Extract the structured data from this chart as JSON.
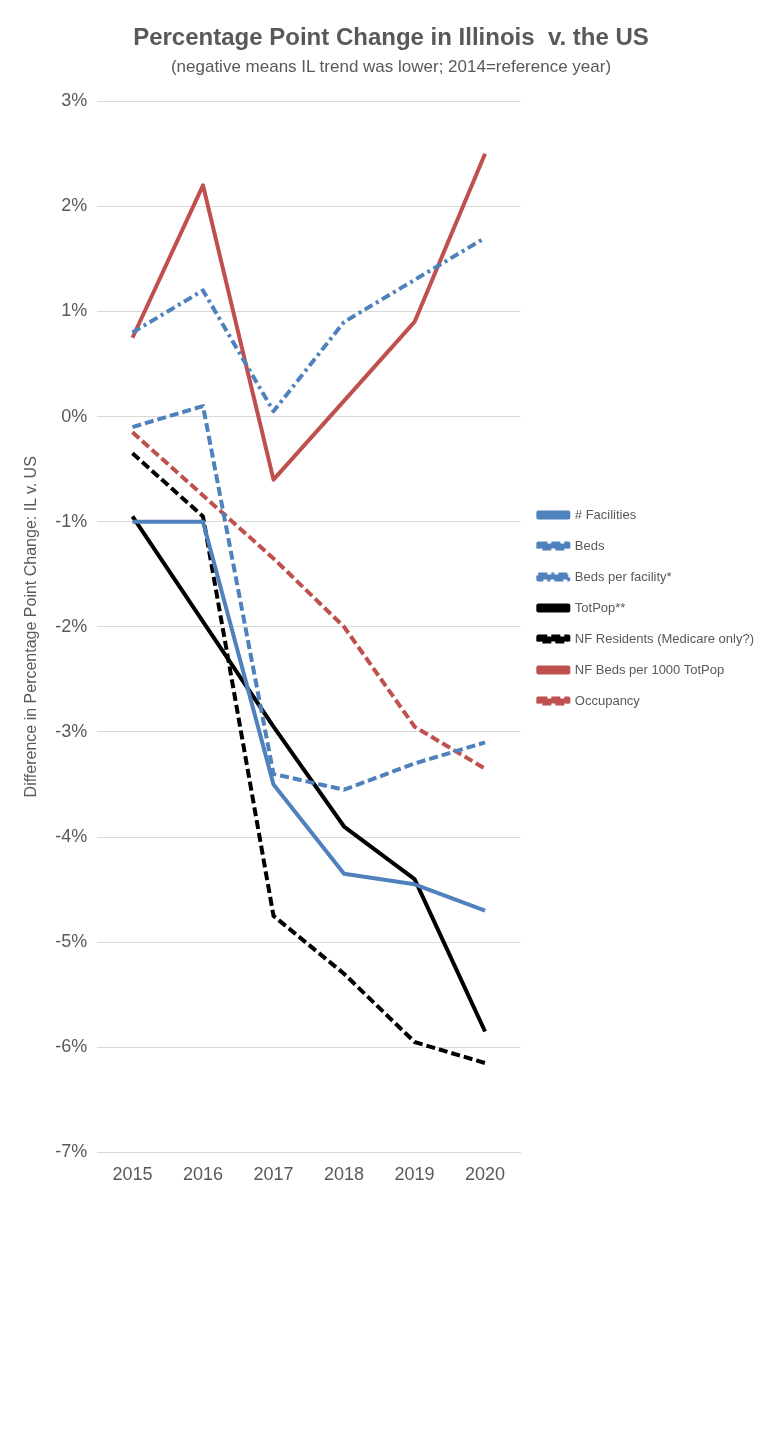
{
  "chart_data": {
    "type": "line",
    "title": "Percentage Point Change in Illinois  v. the US",
    "subtitle": "(negative means IL trend was lower; 2014=reference year)",
    "ylabel": "Difference in Percentage Point Change: IL v. US",
    "categories": [
      "2015",
      "2016",
      "2017",
      "2018",
      "2019",
      "2020"
    ],
    "ylim": [
      -7,
      3
    ],
    "yticks": [
      {
        "value": -7,
        "label": "-7%"
      },
      {
        "value": -6,
        "label": "-6%"
      },
      {
        "value": -5,
        "label": "-5%"
      },
      {
        "value": -4,
        "label": "-4%"
      },
      {
        "value": -3,
        "label": "-3%"
      },
      {
        "value": -2,
        "label": "-2%"
      },
      {
        "value": -1,
        "label": "-1%"
      },
      {
        "value": 0,
        "label": "0%"
      },
      {
        "value": 1,
        "label": "1%"
      },
      {
        "value": 2,
        "label": "2%"
      },
      {
        "value": 3,
        "label": "3%"
      }
    ],
    "grid": "y",
    "legend": "right",
    "marker": "none",
    "series": [
      {
        "name": "# Facilities",
        "color": "#4f81bd",
        "line_style": "solid",
        "values": [
          -1.0,
          -1.0,
          -3.5,
          -4.35,
          -4.45,
          -4.7
        ]
      },
      {
        "name": "Beds",
        "color": "#4f81bd",
        "line_style": "dashed",
        "values": [
          -0.1,
          0.1,
          -3.4,
          -3.55,
          -3.3,
          -3.1
        ]
      },
      {
        "name": "Beds per facility*",
        "color": "#4f81bd",
        "line_style": "dotted",
        "values": [
          0.8,
          1.2,
          0.05,
          0.9,
          1.3,
          1.7
        ]
      },
      {
        "name": "TotPop**",
        "color": "#000000",
        "line_style": "solid",
        "values": [
          -0.95,
          -1.95,
          -2.95,
          -3.9,
          -4.4,
          -5.85
        ]
      },
      {
        "name": "NF Residents (Medicare only?)",
        "color": "#000000",
        "line_style": "dashed",
        "values": [
          -0.35,
          -0.95,
          -4.75,
          -5.3,
          -5.95,
          -6.15
        ]
      },
      {
        "name": "NF Beds per 1000 TotPop",
        "color": "#c0504d",
        "line_style": "solid",
        "values": [
          0.75,
          2.2,
          -0.6,
          0.15,
          0.9,
          2.5
        ]
      },
      {
        "name": "Occupancy",
        "color": "#c0504d",
        "line_style": "dashed",
        "values": [
          -0.15,
          -0.75,
          -1.35,
          -2.0,
          -2.95,
          -3.35
        ]
      }
    ]
  }
}
